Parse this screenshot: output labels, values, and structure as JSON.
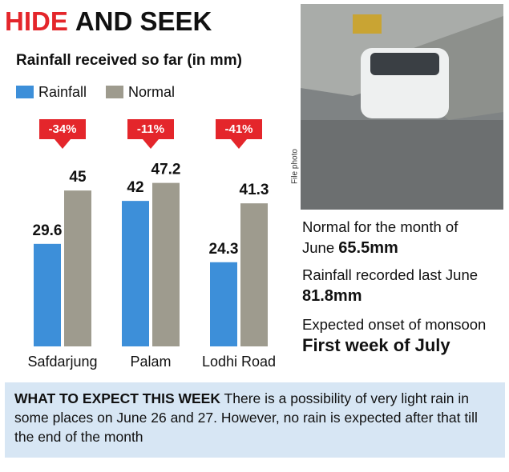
{
  "header": {
    "title_highlight": "HIDE",
    "title_rest": "AND SEEK"
  },
  "chart_data": {
    "type": "bar",
    "title": "Rainfall received so far (in mm)",
    "categories": [
      "Safdarjung",
      "Palam",
      "Lodhi Road"
    ],
    "series": [
      {
        "name": "Rainfall",
        "color": "#3d8fd9",
        "values": [
          29.6,
          42,
          24.3
        ]
      },
      {
        "name": "Normal",
        "color": "#9e9b8e",
        "values": [
          45,
          47.2,
          41.3
        ]
      }
    ],
    "differences": {
      "color": "#e4262b",
      "values": [
        -34,
        -11,
        -41
      ],
      "value_labels": [
        "-34%",
        "-11%",
        "-41%"
      ]
    },
    "ylim": [
      0,
      50
    ]
  },
  "photo": {
    "caption": "File photo"
  },
  "facts": [
    {
      "text": "Normal for the month of June",
      "highlight": "65.5mm"
    },
    {
      "text": "Rainfall recorded last June",
      "highlight": "81.8mm"
    },
    {
      "text": "Expected onset of monsoon",
      "highlight": "First week of July"
    }
  ],
  "outlook": {
    "heading": "WHAT TO EXPECT THIS WEEK",
    "text": "There is a possibility of very light rain in some places on June 26 and 27. However, no rain is expected after that till the end of the month"
  }
}
